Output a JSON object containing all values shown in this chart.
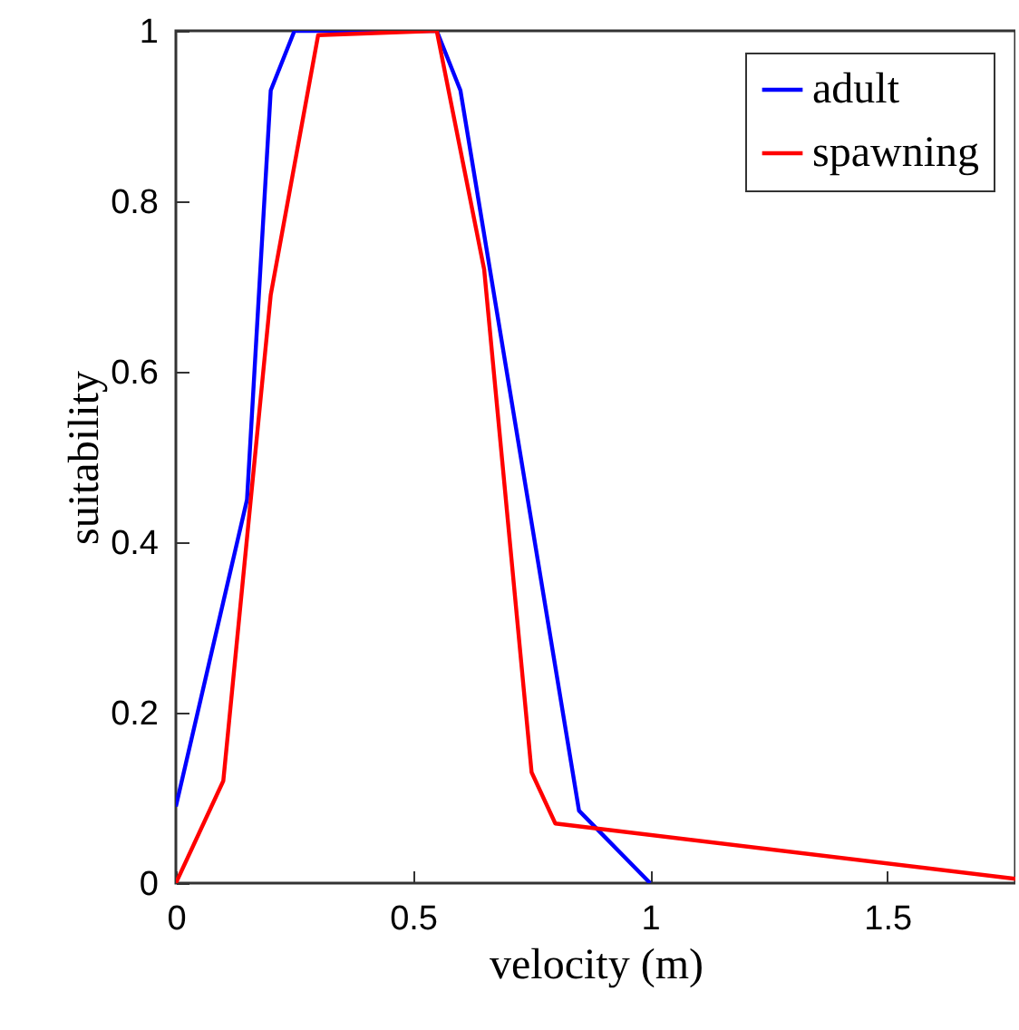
{
  "chart_data": {
    "type": "line",
    "xlabel": "velocity (m)",
    "ylabel": "suitability",
    "xlim": [
      0,
      1.77
    ],
    "xticks": [
      0,
      0.5,
      1,
      1.5
    ],
    "ylim": [
      0,
      1
    ],
    "yticks": [
      0,
      0.2,
      0.4,
      0.6,
      0.8,
      1
    ],
    "grid": false,
    "legend": "top right",
    "marker": "none",
    "line_style": "solid",
    "series": [
      {
        "name": "adult",
        "color": "#0000ff",
        "x": [
          0,
          0.15,
          0.2,
          0.25,
          0.55,
          0.6,
          0.85,
          1
        ],
        "values": [
          0.09,
          0.45,
          0.93,
          1,
          1,
          0.93,
          0.085,
          0
        ]
      },
      {
        "name": "spawning",
        "color": "#ff0000",
        "x": [
          0,
          0.1,
          0.2,
          0.3,
          0.55,
          0.65,
          0.75,
          0.8,
          1.77
        ],
        "values": [
          0,
          0.12,
          0.69,
          0.995,
          1,
          0.72,
          0.13,
          0.07,
          0.005
        ]
      }
    ]
  }
}
